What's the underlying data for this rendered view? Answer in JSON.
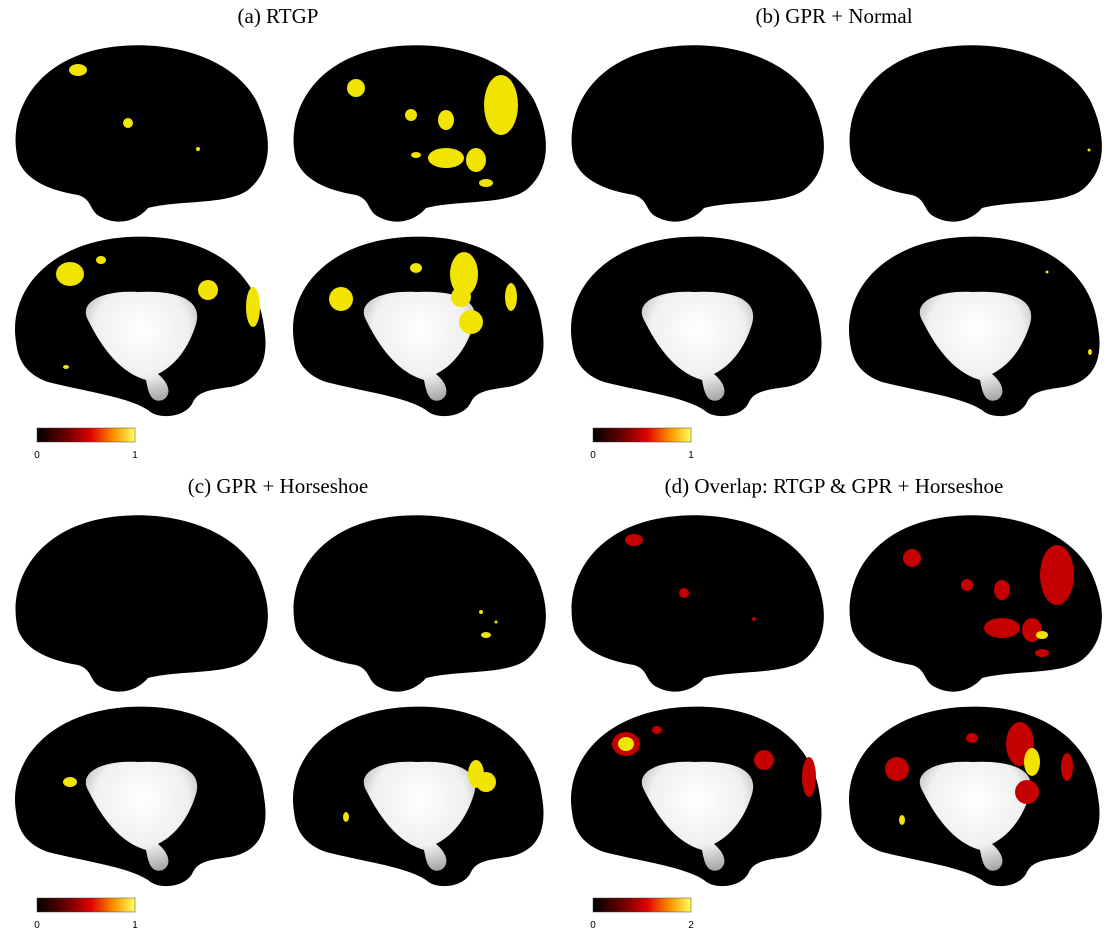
{
  "panels": [
    {
      "title": "(a) RTGP",
      "colorbar": {
        "min": 0,
        "max": 1
      }
    },
    {
      "title": "(b) GPR + Normal",
      "colorbar": {
        "min": 0,
        "max": 1
      }
    },
    {
      "title": "(c) GPR + Horseshoe",
      "colorbar": {
        "min": 0,
        "max": 1
      }
    },
    {
      "title": "(d) Overlap: RTGP & GPR + Horseshoe",
      "colorbar": {
        "min": 0,
        "max": 2
      }
    }
  ]
}
